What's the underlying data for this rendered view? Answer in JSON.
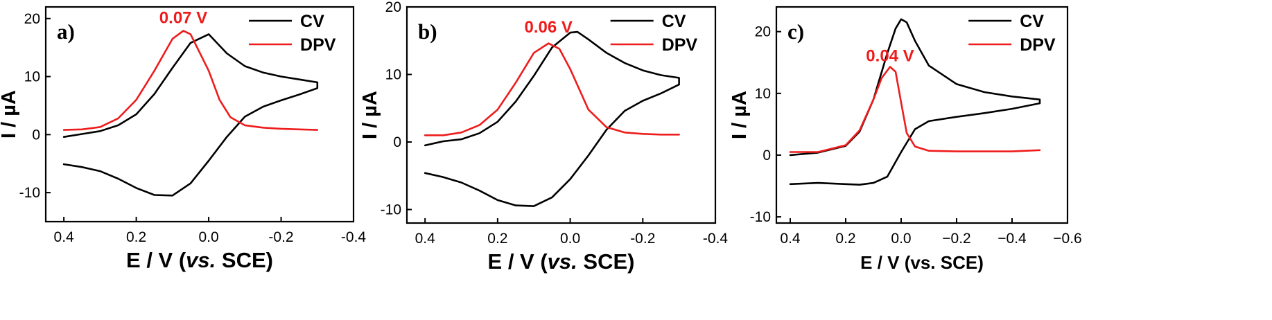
{
  "colors": {
    "cv": "#000000",
    "dpv": "#ee1c1c",
    "annotation": "#ee1c1c"
  },
  "chart_data": [
    {
      "type": "line",
      "panel_label": "a)",
      "xlabel_main": "E / V (",
      "xlabel_italic": "vs.",
      "xlabel_tail": " SCE)",
      "ylabel": "I / µA",
      "xlim": [
        0.45,
        -0.4
      ],
      "ylim": [
        -15,
        22
      ],
      "x_direction": "reversed",
      "xticks": [
        0.4,
        0.2,
        0.0,
        -0.2,
        -0.4
      ],
      "xtick_labels": [
        "0.4",
        "0.2",
        "0.0",
        "-0.2",
        "-0.4"
      ],
      "yticks": [
        -10,
        0,
        10,
        20
      ],
      "ytick_labels": [
        "-10",
        "0",
        "10",
        "20"
      ],
      "annotation": {
        "text": "0.07 V",
        "x": 0.07,
        "y": 19.2
      },
      "legend_position": "top-right",
      "series": [
        {
          "name": "CV",
          "color": "#000000",
          "x": [
            0.4,
            0.35,
            0.3,
            0.25,
            0.2,
            0.15,
            0.1,
            0.05,
            0.0,
            -0.05,
            -0.1,
            -0.15,
            -0.2,
            -0.25,
            -0.3,
            -0.3,
            -0.25,
            -0.2,
            -0.15,
            -0.1,
            -0.05,
            0.0,
            0.05,
            0.1,
            0.15,
            0.2,
            0.25,
            0.3,
            0.35,
            0.4
          ],
          "y": [
            -0.4,
            0.1,
            0.6,
            1.6,
            3.5,
            7.0,
            11.5,
            15.8,
            17.3,
            14.0,
            11.8,
            10.7,
            10.0,
            9.5,
            9.0,
            8.0,
            6.9,
            5.9,
            4.8,
            3.1,
            -0.4,
            -4.5,
            -8.4,
            -10.5,
            -10.4,
            -9.2,
            -7.6,
            -6.3,
            -5.6,
            -5.1
          ]
        },
        {
          "name": "DPV",
          "color": "#ee1c1c",
          "x": [
            0.4,
            0.35,
            0.3,
            0.25,
            0.2,
            0.15,
            0.1,
            0.07,
            0.05,
            0.0,
            -0.03,
            -0.06,
            -0.1,
            -0.15,
            -0.2,
            -0.25,
            -0.3
          ],
          "y": [
            0.8,
            0.9,
            1.3,
            2.8,
            6.0,
            11.0,
            16.5,
            17.9,
            17.3,
            11.0,
            6.0,
            3.0,
            1.6,
            1.2,
            1.0,
            0.9,
            0.8
          ]
        }
      ]
    },
    {
      "type": "line",
      "panel_label": "b)",
      "xlabel_main": "E / V (",
      "xlabel_italic": "vs.",
      "xlabel_tail": " SCE)",
      "ylabel": "I / µA",
      "xlim": [
        0.45,
        -0.4
      ],
      "ylim": [
        -12,
        20
      ],
      "x_direction": "reversed",
      "xticks": [
        0.4,
        0.2,
        0.0,
        -0.2,
        -0.4
      ],
      "xtick_labels": [
        "0.4",
        "0.2",
        "0.0",
        "-0.2",
        "-0.4"
      ],
      "yticks": [
        -10,
        0,
        10,
        20
      ],
      "ytick_labels": [
        "-10",
        "0",
        "10",
        "20"
      ],
      "annotation": {
        "text": "0.06 V",
        "x": 0.06,
        "y": 16.2
      },
      "legend_position": "top-right",
      "series": [
        {
          "name": "CV",
          "color": "#000000",
          "x": [
            0.4,
            0.35,
            0.3,
            0.25,
            0.2,
            0.15,
            0.1,
            0.05,
            0.0,
            -0.02,
            -0.05,
            -0.1,
            -0.15,
            -0.2,
            -0.25,
            -0.3,
            -0.3,
            -0.25,
            -0.2,
            -0.15,
            -0.1,
            -0.05,
            0.0,
            0.05,
            0.1,
            0.15,
            0.2,
            0.25,
            0.3,
            0.35,
            0.4
          ],
          "y": [
            -0.5,
            0.1,
            0.4,
            1.3,
            3.0,
            6.0,
            9.8,
            14.0,
            16.2,
            16.3,
            15.2,
            13.2,
            11.7,
            10.6,
            9.9,
            9.5,
            8.5,
            7.2,
            6.1,
            4.6,
            1.8,
            -2.0,
            -5.5,
            -8.2,
            -9.5,
            -9.4,
            -8.6,
            -7.2,
            -6.0,
            -5.2,
            -4.6
          ]
        },
        {
          "name": "DPV",
          "color": "#ee1c1c",
          "x": [
            0.4,
            0.35,
            0.3,
            0.25,
            0.2,
            0.15,
            0.1,
            0.06,
            0.03,
            0.0,
            -0.05,
            -0.1,
            -0.15,
            -0.2,
            -0.25,
            -0.3
          ],
          "y": [
            1.0,
            1.0,
            1.4,
            2.5,
            4.8,
            8.8,
            13.2,
            14.6,
            13.8,
            10.8,
            4.8,
            2.2,
            1.4,
            1.2,
            1.1,
            1.1
          ]
        }
      ]
    },
    {
      "type": "line",
      "panel_label": "c)",
      "xlabel_main": "E / V (vs. SCE)",
      "xlabel_italic": "",
      "xlabel_tail": "",
      "ylabel": "I / µA",
      "xlim": [
        0.45,
        -0.6
      ],
      "ylim": [
        -11,
        24
      ],
      "x_direction": "reversed",
      "xticks": [
        0.4,
        0.2,
        0.0,
        -0.2,
        -0.4,
        -0.6
      ],
      "xtick_labels": [
        "0.4",
        "0.2",
        "0.0",
        "−0.2",
        "−0.4",
        "−0.6"
      ],
      "yticks": [
        -10,
        0,
        10,
        20
      ],
      "ytick_labels": [
        "-10",
        "0",
        "10",
        "20"
      ],
      "annotation": {
        "text": "0.04 V",
        "x": 0.04,
        "y": 15.2
      },
      "legend_position": "top-right",
      "series": [
        {
          "name": "CV",
          "color": "#000000",
          "x": [
            0.4,
            0.3,
            0.2,
            0.15,
            0.1,
            0.05,
            0.02,
            0.0,
            -0.02,
            -0.05,
            -0.1,
            -0.2,
            -0.3,
            -0.4,
            -0.5,
            -0.5,
            -0.4,
            -0.3,
            -0.2,
            -0.1,
            -0.05,
            0.0,
            0.05,
            0.1,
            0.15,
            0.2,
            0.3,
            0.4
          ],
          "y": [
            0.0,
            0.4,
            1.5,
            3.8,
            9.0,
            16.5,
            20.5,
            22.0,
            21.5,
            18.5,
            14.5,
            11.5,
            10.2,
            9.5,
            9.0,
            8.4,
            7.5,
            6.8,
            6.2,
            5.5,
            4.2,
            0.5,
            -3.5,
            -4.5,
            -4.8,
            -4.7,
            -4.5,
            -4.7
          ]
        },
        {
          "name": "DPV",
          "color": "#ee1c1c",
          "x": [
            0.4,
            0.3,
            0.2,
            0.15,
            0.1,
            0.07,
            0.04,
            0.02,
            0.0,
            -0.02,
            -0.05,
            -0.1,
            -0.2,
            -0.3,
            -0.4,
            -0.5
          ],
          "y": [
            0.5,
            0.5,
            1.6,
            4.0,
            9.0,
            12.5,
            14.3,
            13.5,
            8.5,
            3.6,
            1.4,
            0.7,
            0.6,
            0.6,
            0.6,
            0.8
          ]
        }
      ]
    }
  ]
}
